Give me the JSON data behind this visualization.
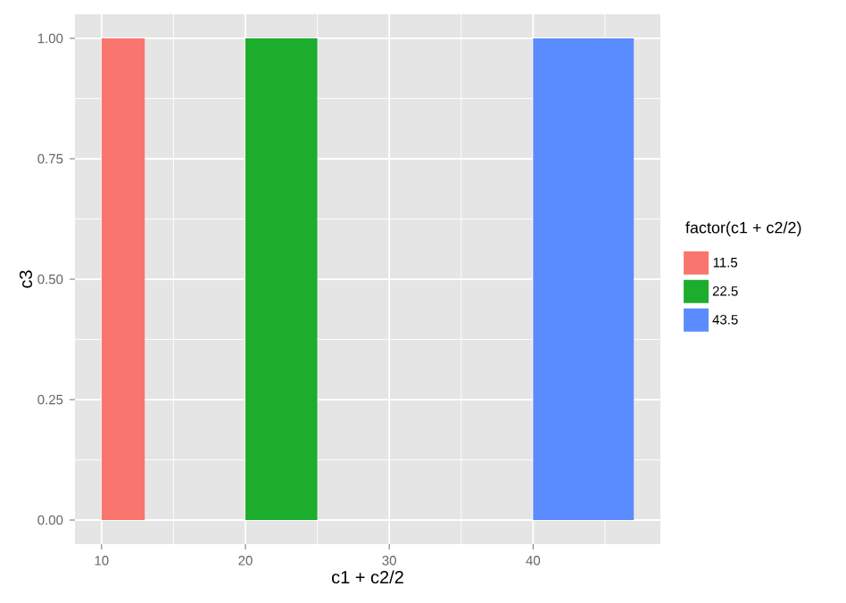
{
  "chart_data": {
    "type": "histogram",
    "xlabel": "c1 + c2/2",
    "ylabel": "c3",
    "legend_title": "factor(c1 + c2/2)",
    "series": [
      {
        "name": "11.5",
        "color": "#f8766d",
        "values": [
          1,
          null,
          null,
          null,
          null
        ]
      },
      {
        "name": "22.5",
        "color": "#1cad2c",
        "values": [
          null,
          null,
          1,
          null,
          null
        ]
      },
      {
        "name": "43.5",
        "color": "#5b8cff",
        "values": [
          null,
          null,
          null,
          null,
          1
        ]
      }
    ],
    "bins": [
      10,
      13,
      20,
      25,
      40,
      47
    ],
    "xlim": [
      8.15,
      48.85
    ],
    "ylim": [
      -0.05,
      1.05
    ],
    "xticks": [
      10,
      20,
      30,
      40
    ],
    "yticks": [
      {
        "value": 0,
        "label": "0.00"
      },
      {
        "value": 0.25,
        "label": "0.25"
      },
      {
        "value": 0.5,
        "label": "0.50"
      },
      {
        "value": 0.75,
        "label": "0.75"
      },
      {
        "value": 1,
        "label": "1.00"
      }
    ],
    "grid": true,
    "legend": "right"
  }
}
